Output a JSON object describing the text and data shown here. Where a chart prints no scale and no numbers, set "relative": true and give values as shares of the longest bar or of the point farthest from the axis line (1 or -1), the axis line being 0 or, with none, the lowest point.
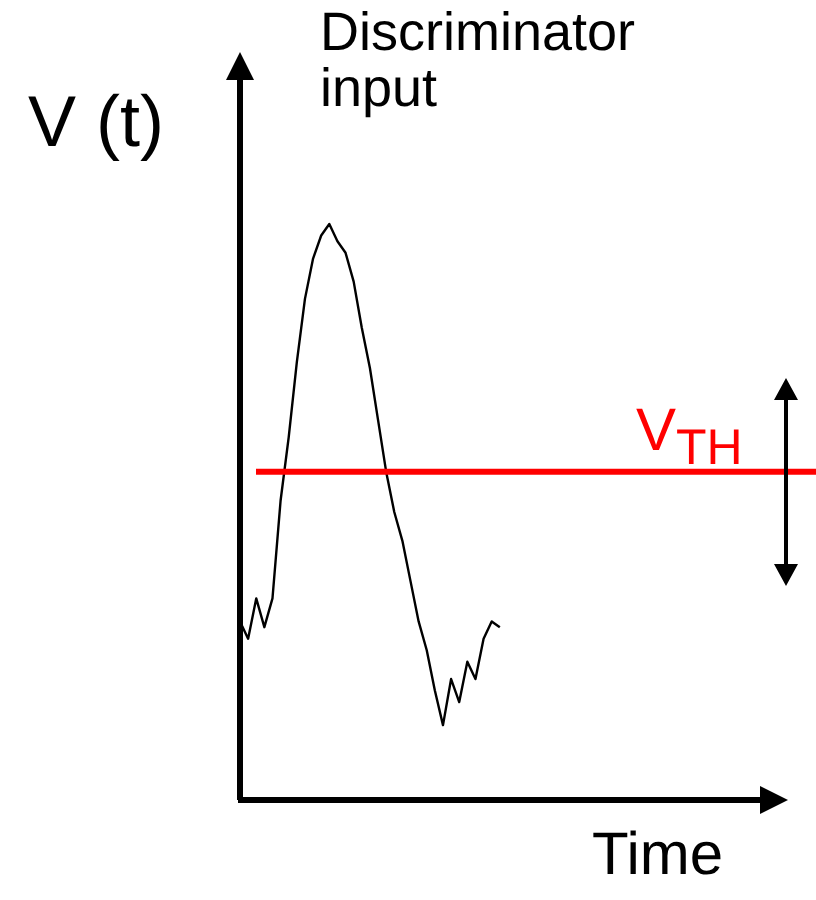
{
  "chart_data": {
    "type": "line",
    "title": "Discriminator input",
    "ylabel": "V (t)",
    "xlabel": "Time",
    "relative": true,
    "legend": false,
    "marker": "none",
    "categories": [
      null,
      null,
      null,
      null,
      null,
      null,
      null,
      null,
      null,
      null,
      null,
      null,
      null,
      null,
      null,
      null,
      null,
      null,
      null,
      null,
      null,
      null,
      null,
      null,
      null,
      null,
      null,
      null,
      null,
      null,
      null,
      null,
      null,
      null,
      null,
      null,
      null,
      null,
      null,
      null,
      null,
      null,
      null,
      null,
      null,
      null,
      null,
      null,
      null,
      null,
      null,
      null,
      null,
      null,
      null,
      null,
      null,
      null,
      null,
      null,
      null,
      null,
      null,
      null,
      null,
      null,
      null,
      null
    ],
    "series": [
      {
        "color": "#000000",
        "values": [
          0.31,
          0.28,
          0.35,
          0.3,
          0.35,
          0.52,
          0.63,
          0.76,
          0.87,
          0.94,
          0.98,
          1,
          0.97,
          0.95,
          0.9,
          0.82,
          0.75,
          0.66,
          0.57,
          0.5,
          0.45,
          0.38,
          0.31,
          0.26,
          0.19,
          0.13,
          0.21,
          0.17,
          0.24,
          0.21,
          0.28,
          0.31,
          0.3,
          null,
          null,
          null,
          null,
          null,
          null,
          null,
          null,
          null,
          null,
          null,
          null,
          null,
          null,
          null,
          null,
          null,
          null,
          null,
          null,
          null,
          null,
          null,
          null,
          null,
          null,
          null,
          null,
          null,
          null,
          null,
          null,
          null,
          null,
          null
        ]
      }
    ],
    "ref_lines": [
      {
        "axis": "y",
        "value": 0.57,
        "label": "V$_{TH}$",
        "color": "#ff0000"
      }
    ]
  }
}
